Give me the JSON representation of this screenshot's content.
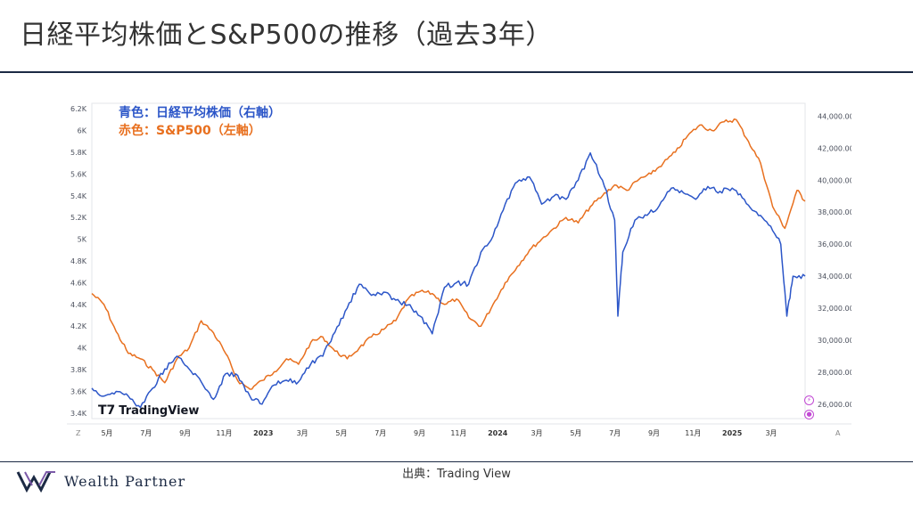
{
  "slide": {
    "title": "日経平均株価とS&P500の推移（過去3年）",
    "source": "出典：Trading View",
    "brand": "Wealth Partner"
  },
  "chart_data": {
    "type": "line",
    "legend": {
      "nikkei": "青色：日経平均株価（右軸）",
      "sp500": "赤色：S&P500（左軸）"
    },
    "watermark": "TradingView",
    "x_ticks": [
      "5月",
      "7月",
      "9月",
      "11月",
      "2023",
      "3月",
      "5月",
      "7月",
      "9月",
      "11月",
      "2024",
      "3月",
      "5月",
      "7月",
      "9月",
      "11月",
      "2025",
      "3月"
    ],
    "x_left_marker": "Z",
    "x_right_marker": "A",
    "left_axis": {
      "ticks": [
        "6.2K",
        "6K",
        "5.8K",
        "5.6K",
        "5.4K",
        "5.2K",
        "5K",
        "4.8K",
        "4.6K",
        "4.4K",
        "4.2K",
        "4K",
        "3.8K",
        "3.6K",
        "3.4K"
      ],
      "range": [
        3350,
        6250
      ]
    },
    "right_axis": {
      "ticks": [
        "44,000.00",
        "42,000.00",
        "40,000.00",
        "38,000.00",
        "36,000.00",
        "34,000.00",
        "32,000.00",
        "30,000.00",
        "28,000.00",
        "26,000.00"
      ],
      "range": [
        25100,
        44800
      ]
    },
    "series": [
      {
        "name": "S&P500",
        "color": "#e8701f",
        "axis": "left",
        "points": [
          [
            0,
            4500
          ],
          [
            3,
            4400
          ],
          [
            6,
            4150
          ],
          [
            9,
            3950
          ],
          [
            12,
            3900
          ],
          [
            15,
            3800
          ],
          [
            18,
            3680
          ],
          [
            21,
            3900
          ],
          [
            24,
            4000
          ],
          [
            27,
            4250
          ],
          [
            30,
            4140
          ],
          [
            33,
            3950
          ],
          [
            36,
            3700
          ],
          [
            39,
            3620
          ],
          [
            42,
            3700
          ],
          [
            45,
            3780
          ],
          [
            48,
            3900
          ],
          [
            51,
            3850
          ],
          [
            54,
            4050
          ],
          [
            57,
            4100
          ],
          [
            60,
            3970
          ],
          [
            63,
            3900
          ],
          [
            66,
            4000
          ],
          [
            69,
            4100
          ],
          [
            72,
            4170
          ],
          [
            75,
            4250
          ],
          [
            78,
            4450
          ],
          [
            81,
            4520
          ],
          [
            84,
            4500
          ],
          [
            87,
            4400
          ],
          [
            90,
            4450
          ],
          [
            93,
            4280
          ],
          [
            96,
            4200
          ],
          [
            99,
            4400
          ],
          [
            102,
            4600
          ],
          [
            105,
            4750
          ],
          [
            108,
            4900
          ],
          [
            111,
            5000
          ],
          [
            114,
            5100
          ],
          [
            117,
            5200
          ],
          [
            120,
            5150
          ],
          [
            123,
            5300
          ],
          [
            126,
            5400
          ],
          [
            129,
            5500
          ],
          [
            132,
            5450
          ],
          [
            135,
            5550
          ],
          [
            138,
            5600
          ],
          [
            141,
            5700
          ],
          [
            144,
            5800
          ],
          [
            147,
            5950
          ],
          [
            150,
            6050
          ],
          [
            153,
            6000
          ],
          [
            156,
            6080
          ],
          [
            159,
            6100
          ],
          [
            162,
            5900
          ],
          [
            165,
            5700
          ],
          [
            168,
            5300
          ],
          [
            171,
            5100
          ],
          [
            174,
            5450
          ],
          [
            176,
            5350
          ]
        ]
      },
      {
        "name": "日経平均株価",
        "color": "#2c56c8",
        "axis": "right",
        "points": [
          [
            0,
            27000
          ],
          [
            3,
            26500
          ],
          [
            6,
            26800
          ],
          [
            9,
            26500
          ],
          [
            12,
            25800
          ],
          [
            15,
            27000
          ],
          [
            18,
            28200
          ],
          [
            21,
            29000
          ],
          [
            24,
            28200
          ],
          [
            27,
            27400
          ],
          [
            30,
            26300
          ],
          [
            33,
            27900
          ],
          [
            36,
            27800
          ],
          [
            39,
            26500
          ],
          [
            42,
            26000
          ],
          [
            45,
            27200
          ],
          [
            48,
            27500
          ],
          [
            51,
            27400
          ],
          [
            54,
            28500
          ],
          [
            57,
            29000
          ],
          [
            60,
            30500
          ],
          [
            63,
            32000
          ],
          [
            66,
            33500
          ],
          [
            69,
            32800
          ],
          [
            72,
            33000
          ],
          [
            75,
            32500
          ],
          [
            78,
            32200
          ],
          [
            81,
            31500
          ],
          [
            84,
            30400
          ],
          [
            87,
            33300
          ],
          [
            90,
            33600
          ],
          [
            93,
            33500
          ],
          [
            96,
            35500
          ],
          [
            99,
            36500
          ],
          [
            102,
            38500
          ],
          [
            105,
            39900
          ],
          [
            108,
            40200
          ],
          [
            111,
            38500
          ],
          [
            114,
            39000
          ],
          [
            117,
            38800
          ],
          [
            120,
            40000
          ],
          [
            123,
            41700
          ],
          [
            126,
            40000
          ],
          [
            129,
            37500
          ],
          [
            129.8,
            31500
          ],
          [
            131,
            35500
          ],
          [
            134,
            37500
          ],
          [
            137,
            37800
          ],
          [
            140,
            38400
          ],
          [
            143,
            39500
          ],
          [
            146,
            39200
          ],
          [
            149,
            38800
          ],
          [
            152,
            39600
          ],
          [
            155,
            39300
          ],
          [
            158,
            39500
          ],
          [
            161,
            38800
          ],
          [
            164,
            38000
          ],
          [
            167,
            37200
          ],
          [
            170,
            36000
          ],
          [
            171.5,
            31500
          ],
          [
            173,
            34000
          ],
          [
            176,
            34000
          ]
        ]
      }
    ]
  }
}
